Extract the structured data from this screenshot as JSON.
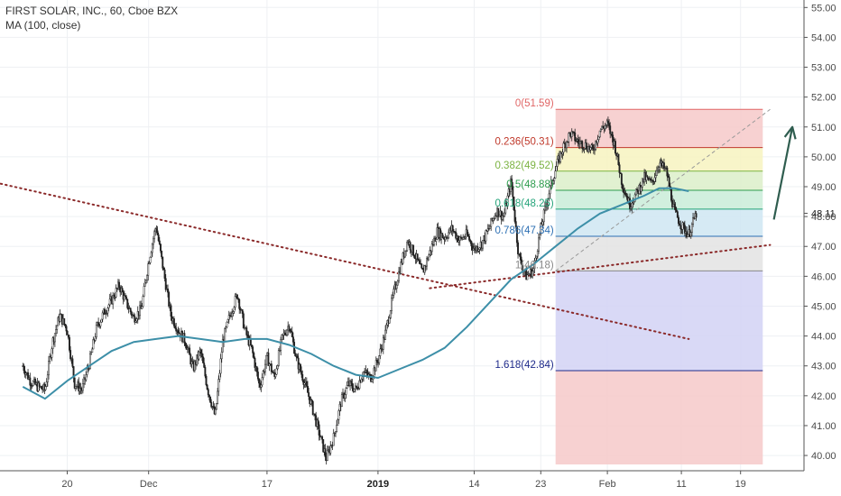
{
  "header": {
    "title": "FIRST SOLAR, INC., 60, Cboe BZX",
    "indicator": "MA (100, close)"
  },
  "colors": {
    "candle": "#222222",
    "ma": "#3d8fa8",
    "trendline": "#8b2a2a",
    "arrow": "#2f5d4f",
    "grid": "#eef0f3",
    "axis": "#555555"
  },
  "chart_data": {
    "type": "candlestick",
    "ylim": [
      39.7,
      55.1
    ],
    "yticks": [
      "55.00",
      "54.00",
      "53.00",
      "52.00",
      "51.00",
      "50.00",
      "49.00",
      "48.00",
      "47.00",
      "46.00",
      "45.00",
      "44.00",
      "43.00",
      "42.00",
      "41.00",
      "40.00"
    ],
    "xticks": [
      {
        "label": "20",
        "day": 6
      },
      {
        "label": "Dec",
        "day": 17
      },
      {
        "label": "17",
        "day": 33
      },
      {
        "label": "2019",
        "day": 48,
        "bold": true
      },
      {
        "label": "14",
        "day": 61
      },
      {
        "label": "23",
        "day": 70
      },
      {
        "label": "Feb",
        "day": 79
      },
      {
        "label": "11",
        "day": 89
      },
      {
        "label": "19",
        "day": 97
      }
    ],
    "last_price": "48.11",
    "price_path": [
      [
        0,
        43.0
      ],
      [
        1,
        42.5
      ],
      [
        2,
        42.3
      ],
      [
        3,
        42.2
      ],
      [
        4,
        43.8
      ],
      [
        5,
        44.7
      ],
      [
        6,
        44.2
      ],
      [
        7,
        42.4
      ],
      [
        8,
        42.2
      ],
      [
        9,
        43.1
      ],
      [
        10,
        44.3
      ],
      [
        11,
        44.8
      ],
      [
        12,
        45.2
      ],
      [
        13,
        45.7
      ],
      [
        14,
        45.1
      ],
      [
        15,
        44.6
      ],
      [
        16,
        44.9
      ],
      [
        17,
        46.5
      ],
      [
        18,
        47.7
      ],
      [
        19,
        46.2
      ],
      [
        20,
        44.7
      ],
      [
        21,
        44.2
      ],
      [
        22,
        43.8
      ],
      [
        23,
        42.9
      ],
      [
        24,
        43.5
      ],
      [
        25,
        42.2
      ],
      [
        26,
        41.3
      ],
      [
        27,
        43.8
      ],
      [
        28,
        44.7
      ],
      [
        29,
        45.4
      ],
      [
        30,
        44.2
      ],
      [
        31,
        43.5
      ],
      [
        32,
        42.3
      ],
      [
        33,
        43.3
      ],
      [
        34,
        42.6
      ],
      [
        35,
        43.9
      ],
      [
        36,
        44.4
      ],
      [
        37,
        43.2
      ],
      [
        38,
        42.5
      ],
      [
        39,
        41.7
      ],
      [
        40,
        40.8
      ],
      [
        41,
        39.9
      ],
      [
        42,
        40.6
      ],
      [
        43,
        41.8
      ],
      [
        44,
        42.4
      ],
      [
        45,
        42.2
      ],
      [
        46,
        42.8
      ],
      [
        47,
        42.6
      ],
      [
        48,
        43.2
      ],
      [
        49,
        44.1
      ],
      [
        50,
        45.3
      ],
      [
        51,
        46.3
      ],
      [
        52,
        47.2
      ],
      [
        53,
        46.7
      ],
      [
        54,
        46.1
      ],
      [
        55,
        46.8
      ],
      [
        56,
        47.5
      ],
      [
        57,
        47.3
      ],
      [
        58,
        47.6
      ],
      [
        59,
        47.2
      ],
      [
        60,
        47.4
      ],
      [
        61,
        46.9
      ],
      [
        62,
        47.1
      ],
      [
        63,
        47.6
      ],
      [
        64,
        48.2
      ],
      [
        65,
        48.0
      ],
      [
        66,
        49.2
      ],
      [
        67,
        46.7
      ],
      [
        68,
        46.0
      ],
      [
        69,
        46.2
      ],
      [
        70,
        47.6
      ],
      [
        71,
        48.7
      ],
      [
        72,
        49.6
      ],
      [
        73,
        50.3
      ],
      [
        74,
        50.8
      ],
      [
        75,
        50.5
      ],
      [
        76,
        50.4
      ],
      [
        77,
        50.2
      ],
      [
        78,
        50.9
      ],
      [
        79,
        51.1
      ],
      [
        80,
        50.4
      ],
      [
        81,
        49.1
      ],
      [
        82,
        48.4
      ],
      [
        83,
        48.8
      ],
      [
        84,
        49.3
      ],
      [
        85,
        49.1
      ],
      [
        86,
        49.8
      ],
      [
        87,
        49.5
      ],
      [
        88,
        48.2
      ],
      [
        89,
        47.7
      ],
      [
        90,
        47.4
      ],
      [
        91,
        48.1
      ]
    ],
    "ma_path": [
      [
        0,
        42.3
      ],
      [
        3,
        41.9
      ],
      [
        6,
        42.5
      ],
      [
        9,
        43.0
      ],
      [
        12,
        43.5
      ],
      [
        15,
        43.8
      ],
      [
        18,
        43.9
      ],
      [
        21,
        44.0
      ],
      [
        24,
        43.9
      ],
      [
        27,
        43.8
      ],
      [
        30,
        43.9
      ],
      [
        33,
        43.9
      ],
      [
        36,
        43.7
      ],
      [
        39,
        43.4
      ],
      [
        42,
        43.0
      ],
      [
        45,
        42.7
      ],
      [
        48,
        42.6
      ],
      [
        51,
        42.9
      ],
      [
        54,
        43.2
      ],
      [
        57,
        43.6
      ],
      [
        60,
        44.3
      ],
      [
        63,
        45.1
      ],
      [
        66,
        45.9
      ],
      [
        69,
        46.4
      ],
      [
        72,
        47.0
      ],
      [
        75,
        47.6
      ],
      [
        78,
        48.1
      ],
      [
        81,
        48.4
      ],
      [
        84,
        48.7
      ],
      [
        86,
        48.95
      ],
      [
        88,
        48.95
      ],
      [
        90,
        48.85
      ]
    ],
    "fibonacci": [
      {
        "ratio": "0",
        "price": "51.59",
        "label": "0(51.59)",
        "value": 51.59,
        "color": "#e06666"
      },
      {
        "ratio": "0.236",
        "price": "50.31",
        "label": "0.236(50.31)",
        "value": 50.31,
        "color": "#c0392b"
      },
      {
        "ratio": "0.382",
        "price": "49.52",
        "label": "0.382(49.52)",
        "value": 49.52,
        "color": "#7cb342"
      },
      {
        "ratio": "0.5",
        "price": "48.88",
        "label": "0.5(48.88)",
        "value": 48.88,
        "color": "#2e9d4e"
      },
      {
        "ratio": "0.618",
        "price": "48.25",
        "label": "0.618(48.25)",
        "value": 48.25,
        "color": "#25a47a"
      },
      {
        "ratio": "0.786",
        "price": "47.34",
        "label": "0.786(47.34)",
        "value": 47.34,
        "color": "#2c6fb3"
      },
      {
        "ratio": "1",
        "price": "46.18",
        "label": "1(46.18)",
        "value": 46.18,
        "color": "#888888"
      },
      {
        "ratio": "1.618",
        "price": "42.84",
        "label": "1.618(42.84)",
        "value": 42.84,
        "color": "#1e2a8a"
      }
    ],
    "fib_range_days": [
      72,
      100
    ],
    "fib_extension_floor": 39.7,
    "fib_bands": [
      {
        "from": 51.59,
        "to": 50.31,
        "fill": "#f6c9c9"
      },
      {
        "from": 50.31,
        "to": 49.52,
        "fill": "#f7f3c0"
      },
      {
        "from": 49.52,
        "to": 48.88,
        "fill": "#dcefc9"
      },
      {
        "from": 48.88,
        "to": 48.25,
        "fill": "#c9ecd8"
      },
      {
        "from": 48.25,
        "to": 47.34,
        "fill": "#cfe6f2"
      },
      {
        "from": 47.34,
        "to": 46.18,
        "fill": "#e3e3e3"
      },
      {
        "from": 46.18,
        "to": 42.84,
        "fill": "#d2d2f5"
      },
      {
        "from": 42.84,
        "to": 39.7,
        "fill": "#f6c9c9"
      }
    ],
    "trendlines": [
      {
        "from": [
          -3,
          49.1
        ],
        "to": [
          90,
          43.9
        ]
      },
      {
        "from": [
          55,
          45.6
        ],
        "to": [
          101,
          47.05
        ]
      }
    ],
    "diagonal": {
      "from": [
        72,
        46.18
      ],
      "to": [
        101,
        51.59
      ]
    },
    "arrow": {
      "from": [
        101.5,
        47.9
      ],
      "to": [
        104,
        51.0
      ]
    }
  }
}
